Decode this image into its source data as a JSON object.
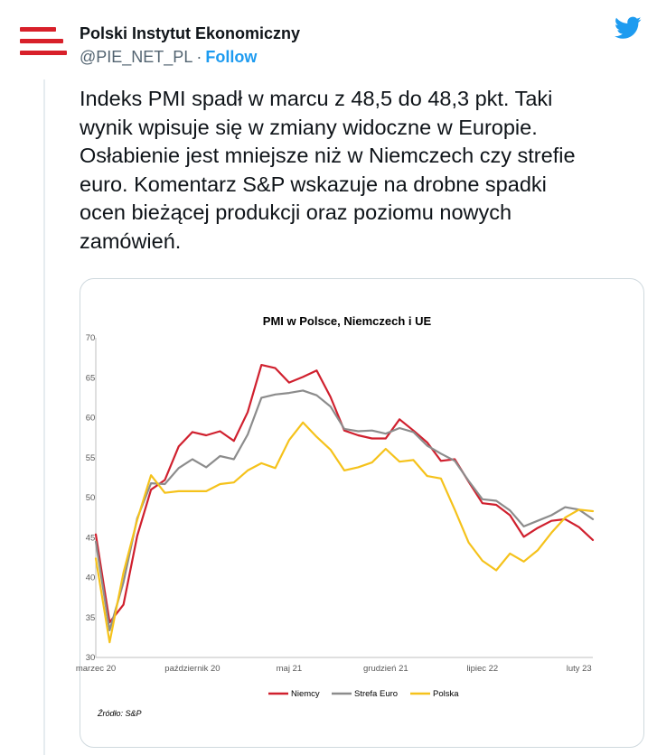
{
  "account": {
    "name": "Polski Instytut Ekonomiczny",
    "handle": "@PIE_NET_PL",
    "separator": "·",
    "follow_label": "Follow",
    "avatar_icon": "pie-logo-icon",
    "platform_icon": "twitter-bird-icon"
  },
  "tweet": {
    "lines": [
      "Indeks PMI spadł w marcu z 48,5 do 48,3 pkt. Taki",
      "wynik wpisuje się w zmiany widoczne w Europie.",
      "Osłabienie jest mniejsze niż w Niemczech czy strefie",
      "euro. Komentarz S&P wskazuje na drobne spadki",
      "ocen bieżącej produkcji oraz poziomu nowych",
      "zamówień."
    ]
  },
  "colors": {
    "accent": "#1d9bf0",
    "logo_red": "#d8202a",
    "niemcy": "#d0202e",
    "strefa_euro": "#8c8c8c",
    "polska": "#f5c21b"
  },
  "chart_data": {
    "type": "line",
    "title": "PMI w Polsce, Niemczech i UE",
    "source": "Źródło: S&P",
    "ylim": [
      30,
      70
    ],
    "yticks": [
      30,
      35,
      40,
      45,
      50,
      55,
      60,
      65,
      70
    ],
    "x": [
      "2020-03",
      "2020-04",
      "2020-05",
      "2020-06",
      "2020-07",
      "2020-08",
      "2020-09",
      "2020-10",
      "2020-11",
      "2020-12",
      "2021-01",
      "2021-02",
      "2021-03",
      "2021-04",
      "2021-05",
      "2021-06",
      "2021-07",
      "2021-08",
      "2021-09",
      "2021-10",
      "2021-11",
      "2021-12",
      "2022-01",
      "2022-02",
      "2022-03",
      "2022-04",
      "2022-05",
      "2022-06",
      "2022-07",
      "2022-08",
      "2022-09",
      "2022-10",
      "2022-11",
      "2022-12",
      "2023-01",
      "2023-02",
      "2023-03"
    ],
    "xtick_labels": [
      {
        "index": 0,
        "label": "marzec 20"
      },
      {
        "index": 7,
        "label": "październik 20"
      },
      {
        "index": 14,
        "label": "maj 21"
      },
      {
        "index": 21,
        "label": "grudzień 21"
      },
      {
        "index": 28,
        "label": "lipiec 22"
      },
      {
        "index": 35,
        "label": "luty 23"
      }
    ],
    "grid": false,
    "legend_position": "bottom",
    "series": [
      {
        "name": "Niemcy",
        "color": "#d0202e",
        "values": [
          45.4,
          34.4,
          36.6,
          45.2,
          51.0,
          52.2,
          56.4,
          58.2,
          57.8,
          58.3,
          57.1,
          60.7,
          66.6,
          66.2,
          64.4,
          65.1,
          65.9,
          62.6,
          58.4,
          57.8,
          57.4,
          57.4,
          59.8,
          58.4,
          56.9,
          54.6,
          54.8,
          52.0,
          49.3,
          49.1,
          47.8,
          45.1,
          46.2,
          47.1,
          47.3,
          46.3,
          44.7
        ]
      },
      {
        "name": "Strefa Euro",
        "color": "#8c8c8c",
        "values": [
          44.5,
          33.4,
          39.4,
          47.4,
          51.8,
          51.7,
          53.7,
          54.8,
          53.8,
          55.2,
          54.8,
          57.9,
          62.5,
          62.9,
          63.1,
          63.4,
          62.8,
          61.4,
          58.6,
          58.3,
          58.4,
          58.0,
          58.7,
          58.2,
          56.5,
          55.5,
          54.6,
          52.1,
          49.8,
          49.6,
          48.4,
          46.4,
          47.1,
          47.8,
          48.8,
          48.5,
          47.3
        ]
      },
      {
        "name": "Polska",
        "color": "#f5c21b",
        "values": [
          42.4,
          31.9,
          40.6,
          47.2,
          52.8,
          50.6,
          50.8,
          50.8,
          50.8,
          51.7,
          51.9,
          53.4,
          54.3,
          53.7,
          57.2,
          59.4,
          57.6,
          56.0,
          53.4,
          53.8,
          54.4,
          56.1,
          54.5,
          54.7,
          52.7,
          52.4,
          48.5,
          44.4,
          42.1,
          40.9,
          43.0,
          42.0,
          43.4,
          45.6,
          47.5,
          48.5,
          48.3
        ]
      }
    ]
  }
}
